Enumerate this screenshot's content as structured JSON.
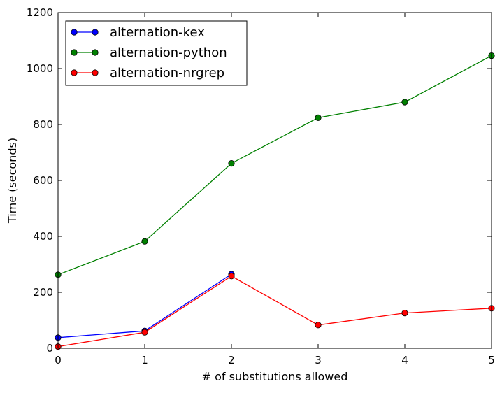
{
  "chart_data": {
    "type": "line",
    "title": "",
    "xlabel": "# of substitutions allowed",
    "ylabel": "Time (seconds)",
    "xlim": [
      0,
      5
    ],
    "ylim": [
      0,
      1200
    ],
    "x_ticks": [
      "0",
      "1",
      "2",
      "3",
      "4",
      "5"
    ],
    "y_ticks": [
      "0",
      "200",
      "400",
      "600",
      "800",
      "1000",
      "1200"
    ],
    "x": [
      0,
      1,
      2,
      3,
      4,
      5
    ],
    "grid": false,
    "legend_position": "top-left",
    "series": [
      {
        "name": "alternation-kex",
        "color": "#0000ff",
        "values": [
          38,
          62,
          265,
          null,
          null,
          null
        ]
      },
      {
        "name": "alternation-python",
        "color": "#008000",
        "values": [
          263,
          382,
          661,
          824,
          880,
          1046
        ]
      },
      {
        "name": "alternation-nrgrep",
        "color": "#ff0000",
        "values": [
          6,
          57,
          258,
          83,
          126,
          143
        ]
      }
    ]
  }
}
